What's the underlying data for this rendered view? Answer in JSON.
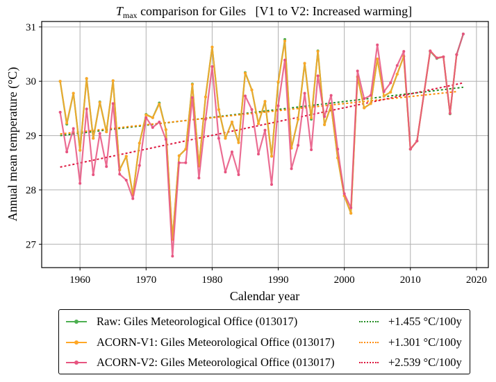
{
  "chart_data": {
    "type": "line",
    "title_main": "T",
    "title_sub": "max",
    "title_rest": " comparison for Giles   [V1 to V2: Increased warming]",
    "xlabel": "Calendar year",
    "ylabel": "Annual mean temperature (°C)",
    "xlim": [
      1954.2,
      2021.8
    ],
    "ylim": [
      26.57,
      31.1
    ],
    "xticks": [
      1960,
      1970,
      1980,
      1990,
      2000,
      2010,
      2020
    ],
    "yticks": [
      27,
      28,
      29,
      30,
      31
    ],
    "grid": true,
    "legend_position": "below",
    "series": [
      {
        "name": "Raw: Giles Meteorological Office (013017)",
        "color": "#4caf50",
        "x": [
          1957,
          1958,
          1959,
          1960,
          1961,
          1962,
          1963,
          1964,
          1965,
          1966,
          1967,
          1968,
          1969,
          1970,
          1971,
          1972,
          1973,
          1974,
          1975,
          1976,
          1977,
          1978,
          1979,
          1980,
          1981,
          1982,
          1983,
          1984,
          1985,
          1986,
          1987,
          1988,
          1989,
          1990,
          1991,
          1992,
          1993,
          1994,
          1995,
          1996,
          1997,
          1998,
          1999,
          2000,
          2001,
          2002,
          2003,
          2004,
          2005,
          2006,
          2007,
          2008,
          2009,
          2010,
          2011,
          2013,
          2014,
          2015,
          2016,
          2017,
          2018
        ],
        "values": [
          30.0,
          29.21,
          29.78,
          28.73,
          30.05,
          28.95,
          29.62,
          29.07,
          30.01,
          28.37,
          28.62,
          27.91,
          28.86,
          29.39,
          29.33,
          29.6,
          29.11,
          27.09,
          28.63,
          28.75,
          29.95,
          28.44,
          29.71,
          30.63,
          29.48,
          28.95,
          29.25,
          28.87,
          30.16,
          29.84,
          29.22,
          29.63,
          28.62,
          29.98,
          30.77,
          28.77,
          29.3,
          30.33,
          29.3,
          30.56,
          29.2,
          29.55,
          28.59,
          27.89,
          27.57,
          30.08,
          29.51,
          29.59,
          30.41,
          29.73,
          29.8,
          30.13,
          30.46,
          28.75,
          28.9,
          30.55,
          30.42,
          30.45,
          29.4,
          30.49,
          30.87
        ]
      },
      {
        "name": "ACORN-V1: Giles Meteorological Office (013017)",
        "color": "#ffa726",
        "x": [
          1957,
          1958,
          1959,
          1960,
          1961,
          1962,
          1963,
          1964,
          1965,
          1966,
          1967,
          1968,
          1969,
          1970,
          1971,
          1972,
          1973,
          1974,
          1975,
          1976,
          1977,
          1978,
          1979,
          1980,
          1981,
          1982,
          1983,
          1984,
          1985,
          1986,
          1987,
          1988,
          1989,
          1990,
          1991,
          1992,
          1993,
          1994,
          1995,
          1996,
          1997,
          1998,
          1999,
          2000,
          2001,
          2002,
          2003,
          2004,
          2005,
          2006,
          2007,
          2008,
          2009,
          2010,
          2011,
          2013,
          2014,
          2015,
          2016,
          2017
        ],
        "values": [
          30.0,
          29.23,
          29.78,
          28.73,
          30.05,
          28.95,
          29.61,
          29.07,
          30.01,
          28.37,
          28.62,
          27.91,
          28.86,
          29.38,
          29.33,
          29.58,
          29.11,
          27.09,
          28.63,
          28.75,
          29.94,
          28.44,
          29.71,
          30.63,
          29.48,
          28.95,
          29.25,
          28.87,
          30.15,
          29.84,
          29.22,
          29.63,
          28.62,
          29.99,
          30.74,
          28.77,
          29.3,
          30.33,
          29.33,
          30.55,
          29.2,
          29.55,
          28.59,
          27.89,
          27.57,
          30.08,
          29.51,
          29.59,
          30.41,
          29.73,
          29.8,
          30.13,
          30.46,
          28.75,
          28.9,
          30.56,
          30.43,
          30.45,
          29.41,
          30.49
        ]
      },
      {
        "name": "ACORN-V2: Giles Meteorological Office (013017)",
        "color": "#e75480",
        "x": [
          1957,
          1958,
          1959,
          1960,
          1961,
          1962,
          1963,
          1964,
          1965,
          1966,
          1967,
          1968,
          1969,
          1970,
          1971,
          1972,
          1973,
          1974,
          1975,
          1976,
          1977,
          1978,
          1979,
          1980,
          1981,
          1982,
          1983,
          1984,
          1985,
          1986,
          1987,
          1988,
          1989,
          1990,
          1991,
          1992,
          1993,
          1994,
          1995,
          1996,
          1997,
          1998,
          1999,
          2000,
          2001,
          2002,
          2003,
          2004,
          2005,
          2006,
          2007,
          2008,
          2009,
          2010,
          2011,
          2013,
          2014,
          2015,
          2016,
          2017,
          2018
        ],
        "values": [
          29.43,
          28.7,
          29.13,
          28.12,
          29.49,
          28.28,
          29.04,
          28.43,
          29.59,
          28.29,
          28.18,
          27.84,
          28.45,
          29.33,
          29.15,
          29.25,
          28.93,
          26.78,
          28.5,
          28.5,
          29.7,
          28.22,
          29.3,
          30.27,
          28.95,
          28.33,
          28.7,
          28.28,
          29.73,
          29.48,
          28.66,
          29.1,
          28.1,
          29.55,
          30.39,
          28.39,
          28.82,
          29.78,
          28.74,
          30.1,
          29.35,
          29.74,
          28.75,
          27.93,
          27.67,
          30.19,
          29.68,
          29.74,
          30.67,
          29.81,
          29.97,
          30.29,
          30.55,
          28.75,
          28.9,
          30.56,
          30.43,
          30.45,
          29.41,
          30.49,
          30.87
        ]
      }
    ],
    "trends": [
      {
        "label": "+1.455 °C/100y",
        "color": "#228b22",
        "x": [
          1957,
          2018
        ],
        "values": [
          29.0,
          29.89
        ]
      },
      {
        "label": "+1.301 °C/100y",
        "color": "#ff8c00",
        "x": [
          1957,
          2017
        ],
        "values": [
          29.03,
          29.81
        ]
      },
      {
        "label": "+2.539 °C/100y",
        "color": "#dc143c",
        "x": [
          1957,
          2018
        ],
        "values": [
          28.42,
          29.97
        ]
      }
    ]
  },
  "legend": {
    "items": [
      {
        "label": "Raw: Giles Meteorological Office (013017)",
        "color": "#4caf50",
        "trend_label": "+1.455 °C/100y",
        "trend_color": "#228b22"
      },
      {
        "label": "ACORN-V1: Giles Meteorological Office (013017)",
        "color": "#ffa726",
        "trend_label": "+1.301 °C/100y",
        "trend_color": "#ff8c00"
      },
      {
        "label": "ACORN-V2: Giles Meteorological Office (013017)",
        "color": "#e75480",
        "trend_label": "+2.539 °C/100y",
        "trend_color": "#dc143c"
      }
    ]
  }
}
